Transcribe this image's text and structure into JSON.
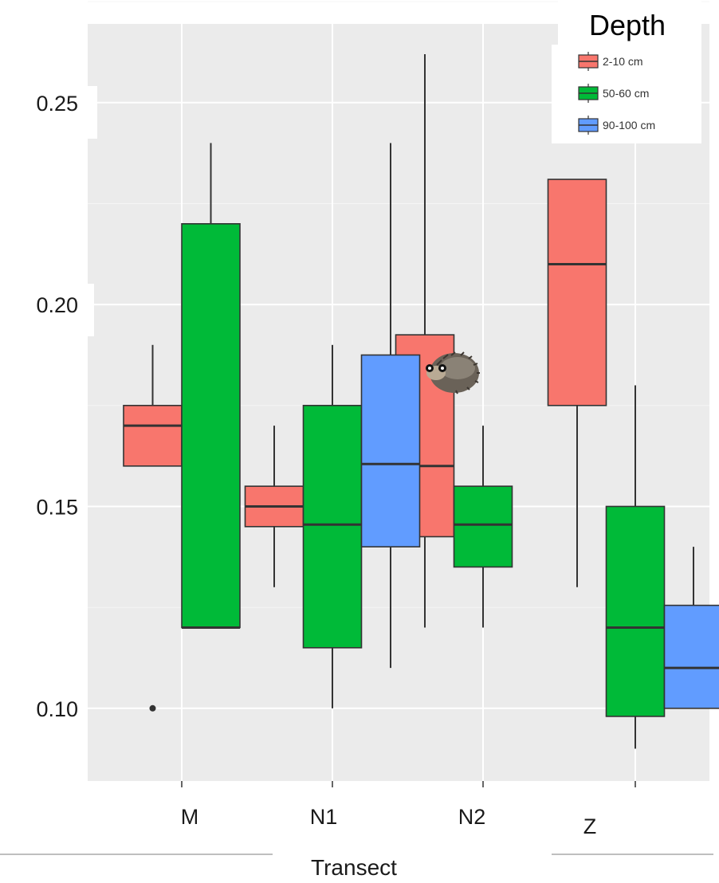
{
  "chart_data": {
    "type": "box",
    "xlabel": "Transect",
    "categories": [
      "M",
      "N1",
      "N2",
      "Z"
    ],
    "ylim": [
      0.082,
      0.2695
    ],
    "yticks": [
      0.1,
      0.15,
      0.2,
      0.25
    ],
    "ytick_labels": [
      "0.10",
      "0.15",
      "0.20",
      "0.25"
    ],
    "grid": true,
    "legend": {
      "title": "Depth",
      "position": "top-right",
      "entries": [
        "2-10 cm",
        "50-60 cm",
        "90-100 cm"
      ]
    },
    "series": [
      {
        "name": "2-10 cm",
        "color": "#F8766D",
        "boxes": [
          {
            "category": "M",
            "min": 0.16,
            "q1": 0.16,
            "median": 0.17,
            "q3": 0.175,
            "max": 0.19,
            "outliers": [
              0.1
            ]
          },
          {
            "category": "N1",
            "min": 0.13,
            "q1": 0.145,
            "median": 0.15,
            "q3": 0.155,
            "max": 0.17,
            "outliers": []
          },
          {
            "category": "N2",
            "min": 0.12,
            "q1": 0.1425,
            "median": 0.16,
            "q3": 0.1925,
            "max": 0.262,
            "outliers": []
          },
          {
            "category": "Z",
            "min": 0.13,
            "q1": 0.175,
            "median": 0.21,
            "q3": 0.231,
            "max": 0.231,
            "outliers": []
          }
        ]
      },
      {
        "name": "50-60 cm",
        "color": "#00BA38",
        "boxes": [
          {
            "category": "M",
            "min": 0.12,
            "q1": 0.12,
            "median": 0.12,
            "q3": 0.22,
            "max": 0.24,
            "outliers": []
          },
          {
            "category": "N1",
            "min": 0.1,
            "q1": 0.115,
            "median": 0.1455,
            "q3": 0.175,
            "max": 0.19,
            "outliers": []
          },
          {
            "category": "N2",
            "min": 0.12,
            "q1": 0.135,
            "median": 0.1455,
            "q3": 0.155,
            "max": 0.17,
            "outliers": []
          },
          {
            "category": "Z",
            "min": 0.09,
            "q1": 0.098,
            "median": 0.12,
            "q3": 0.15,
            "max": 0.18,
            "outliers": []
          }
        ]
      },
      {
        "name": "90-100 cm",
        "color": "#619CFF",
        "boxes": [
          {
            "category": "N1",
            "min": 0.11,
            "q1": 0.14,
            "median": 0.1605,
            "q3": 0.1875,
            "max": 0.24,
            "outliers": []
          },
          {
            "category": "Z",
            "min": 0.1,
            "q1": 0.1,
            "median": 0.11,
            "q3": 0.1255,
            "max": 0.14,
            "outliers": []
          }
        ]
      }
    ],
    "annotations": [
      {
        "type": "image",
        "description": "hedgehog",
        "near": {
          "category": "N2",
          "y": 0.183
        }
      }
    ]
  }
}
